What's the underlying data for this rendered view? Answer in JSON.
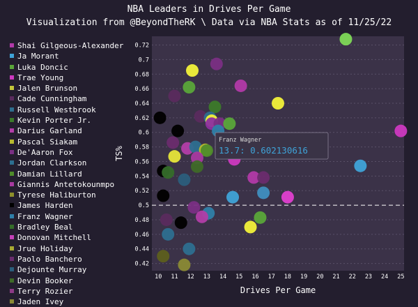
{
  "title": "NBA Leaders in Drives Per Game",
  "subtitle": "Visualization from @BeyondTheRK \\ Data via NBA Stats as of 11/25/22",
  "legend": [
    {
      "name": "Shai Gilgeous-Alexander",
      "color": "#b13aa8"
    },
    {
      "name": "Ja Morant",
      "color": "#3fa3d8"
    },
    {
      "name": "Luka Doncic",
      "color": "#5aa63a"
    },
    {
      "name": "Trae Young",
      "color": "#cc39c0"
    },
    {
      "name": "Jalen Brunson",
      "color": "#c3c73a"
    },
    {
      "name": "Cade Cunningham",
      "color": "#5a2b5e"
    },
    {
      "name": "Russell Westbrook",
      "color": "#2e6e8e"
    },
    {
      "name": "Kevin Porter Jr.",
      "color": "#3c7a2a"
    },
    {
      "name": "Darius Garland",
      "color": "#b23ea8"
    },
    {
      "name": "Pascal Siakam",
      "color": "#b8ba2f"
    },
    {
      "name": "De'Aaron Fox",
      "color": "#7a2f84"
    },
    {
      "name": "Jordan Clarkson",
      "color": "#2d6f90"
    },
    {
      "name": "Damian Lillard",
      "color": "#4f8c2b"
    },
    {
      "name": "Giannis Antetokounmpo",
      "color": "#a83aa0"
    },
    {
      "name": "Tyrese Haliburton",
      "color": "#8e8f2b"
    },
    {
      "name": "James Harden",
      "color": "#000000"
    },
    {
      "name": "Franz Wagner",
      "color": "#2f7fa8"
    },
    {
      "name": "Bradley Beal",
      "color": "#356d2a"
    },
    {
      "name": "Donovan Mitchell",
      "color": "#c441b8"
    },
    {
      "name": "Jrue Holiday",
      "color": "#a8aa32"
    },
    {
      "name": "Paolo Banchero",
      "color": "#6a2c6e"
    },
    {
      "name": "Dejounte Murray",
      "color": "#2b5e7c"
    },
    {
      "name": "Devin Booker",
      "color": "#3f6a28"
    },
    {
      "name": "Terry Rozier",
      "color": "#8d3a86"
    },
    {
      "name": "Jaden Ivey",
      "color": "#8a8a35"
    }
  ],
  "tooltip": {
    "name": "Franz Wagner",
    "value": "13.7: 0.602130616"
  },
  "chart_data": {
    "type": "scatter",
    "title": "NBA Leaders in Drives Per Game",
    "subtitle": "Visualization from @BeyondTheRK \\ Data via NBA Stats as of 11/25/22",
    "xlabel": "Drives Per Game",
    "ylabel": "TS%",
    "xlim": [
      9.6,
      25.2
    ],
    "ylim": [
      0.41,
      0.732
    ],
    "xticks": [
      10,
      11,
      12,
      13,
      14,
      15,
      16,
      17,
      18,
      19,
      20,
      21,
      22,
      23,
      24,
      25
    ],
    "yticks": [
      0.42,
      0.44,
      0.46,
      0.48,
      0.5,
      0.52,
      0.54,
      0.56,
      0.58,
      0.6,
      0.62,
      0.64,
      0.66,
      0.68,
      0.7,
      0.72
    ],
    "reference_line": 0.5,
    "points": [
      {
        "x": 21.6,
        "y": 0.728,
        "color": "#7ed957"
      },
      {
        "x": 25.0,
        "y": 0.602,
        "color": "#cc39c0"
      },
      {
        "x": 22.5,
        "y": 0.554,
        "color": "#3fa3d8"
      },
      {
        "x": 17.4,
        "y": 0.64,
        "color": "#f2f23a"
      },
      {
        "x": 15.1,
        "y": 0.664,
        "color": "#b13aa8"
      },
      {
        "x": 13.6,
        "y": 0.694,
        "color": "#7a2f84"
      },
      {
        "x": 12.1,
        "y": 0.685,
        "color": "#f2f23a"
      },
      {
        "x": 11.9,
        "y": 0.662,
        "color": "#5aa63a"
      },
      {
        "x": 11.0,
        "y": 0.65,
        "color": "#5a2b5e"
      },
      {
        "x": 13.5,
        "y": 0.635,
        "color": "#3c7a2a"
      },
      {
        "x": 12.6,
        "y": 0.622,
        "color": "#5a2b5e"
      },
      {
        "x": 13.2,
        "y": 0.62,
        "color": "#2e6e8e"
      },
      {
        "x": 13.3,
        "y": 0.616,
        "color": "#f2f23a"
      },
      {
        "x": 13.3,
        "y": 0.612,
        "color": "#8e2fa0"
      },
      {
        "x": 13.8,
        "y": 0.612,
        "color": "#7a2f84"
      },
      {
        "x": 14.4,
        "y": 0.612,
        "color": "#5aa63a"
      },
      {
        "x": 13.7,
        "y": 0.602,
        "color": "#2f7fa8"
      },
      {
        "x": 10.1,
        "y": 0.62,
        "color": "#000000"
      },
      {
        "x": 11.2,
        "y": 0.602,
        "color": "#000000"
      },
      {
        "x": 10.9,
        "y": 0.586,
        "color": "#6a2c6e"
      },
      {
        "x": 11.8,
        "y": 0.578,
        "color": "#b23ea8"
      },
      {
        "x": 12.3,
        "y": 0.58,
        "color": "#2d6f90"
      },
      {
        "x": 12.9,
        "y": 0.576,
        "color": "#b8ba2f"
      },
      {
        "x": 13.0,
        "y": 0.575,
        "color": "#4f8c2b"
      },
      {
        "x": 11.0,
        "y": 0.567,
        "color": "#e6e63a"
      },
      {
        "x": 12.4,
        "y": 0.565,
        "color": "#a83aa0"
      },
      {
        "x": 14.7,
        "y": 0.563,
        "color": "#cc39c0"
      },
      {
        "x": 12.4,
        "y": 0.553,
        "color": "#3f6a28"
      },
      {
        "x": 10.3,
        "y": 0.547,
        "color": "#000000"
      },
      {
        "x": 10.6,
        "y": 0.545,
        "color": "#356d2a"
      },
      {
        "x": 11.6,
        "y": 0.535,
        "color": "#2b5e7c"
      },
      {
        "x": 15.9,
        "y": 0.538,
        "color": "#b13aa8"
      },
      {
        "x": 16.5,
        "y": 0.538,
        "color": "#6a2c6e"
      },
      {
        "x": 10.3,
        "y": 0.513,
        "color": "#000000"
      },
      {
        "x": 14.6,
        "y": 0.511,
        "color": "#3fa3d8"
      },
      {
        "x": 16.5,
        "y": 0.517,
        "color": "#3f8fc0"
      },
      {
        "x": 18.0,
        "y": 0.511,
        "color": "#e040d0"
      },
      {
        "x": 12.2,
        "y": 0.497,
        "color": "#7a2f84"
      },
      {
        "x": 13.1,
        "y": 0.489,
        "color": "#2f7fa8"
      },
      {
        "x": 12.7,
        "y": 0.484,
        "color": "#b23ea8"
      },
      {
        "x": 10.5,
        "y": 0.48,
        "color": "#5a2b5e"
      },
      {
        "x": 11.4,
        "y": 0.476,
        "color": "#000000"
      },
      {
        "x": 16.3,
        "y": 0.483,
        "color": "#5aa63a"
      },
      {
        "x": 15.7,
        "y": 0.47,
        "color": "#f2f23a"
      },
      {
        "x": 10.6,
        "y": 0.46,
        "color": "#2d6f90"
      },
      {
        "x": 11.9,
        "y": 0.44,
        "color": "#2d6f90"
      },
      {
        "x": 10.3,
        "y": 0.43,
        "color": "#5d5f1e"
      },
      {
        "x": 11.6,
        "y": 0.418,
        "color": "#8a8a35"
      }
    ]
  }
}
